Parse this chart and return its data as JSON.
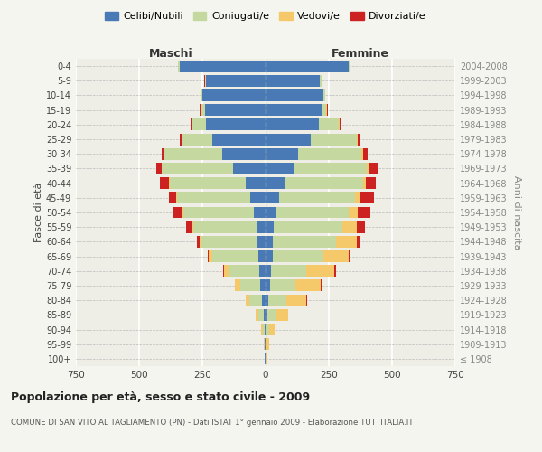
{
  "age_groups": [
    "100+",
    "95-99",
    "90-94",
    "85-89",
    "80-84",
    "75-79",
    "70-74",
    "65-69",
    "60-64",
    "55-59",
    "50-54",
    "45-49",
    "40-44",
    "35-39",
    "30-34",
    "25-29",
    "20-24",
    "15-19",
    "10-14",
    "5-9",
    "0-4"
  ],
  "birth_years": [
    "≤ 1908",
    "1909-1913",
    "1914-1918",
    "1919-1923",
    "1924-1928",
    "1929-1933",
    "1934-1938",
    "1939-1943",
    "1944-1948",
    "1949-1953",
    "1954-1958",
    "1959-1963",
    "1964-1968",
    "1969-1973",
    "1974-1978",
    "1979-1983",
    "1984-1988",
    "1989-1993",
    "1994-1998",
    "1999-2003",
    "2004-2008"
  ],
  "maschi": {
    "celibi": [
      2,
      2,
      4,
      8,
      14,
      20,
      25,
      30,
      32,
      35,
      45,
      60,
      80,
      130,
      170,
      210,
      235,
      240,
      250,
      235,
      340
    ],
    "coniugati": [
      2,
      3,
      8,
      20,
      50,
      80,
      120,
      180,
      220,
      250,
      280,
      290,
      300,
      280,
      230,
      120,
      55,
      15,
      5,
      5,
      5
    ],
    "vedovi": [
      1,
      2,
      5,
      10,
      15,
      20,
      20,
      15,
      10,
      8,
      5,
      3,
      2,
      2,
      2,
      3,
      2,
      2,
      1,
      1,
      1
    ],
    "divorziati": [
      0,
      0,
      0,
      0,
      1,
      2,
      3,
      5,
      10,
      20,
      35,
      30,
      35,
      20,
      10,
      5,
      3,
      2,
      1,
      1,
      0
    ]
  },
  "femmine": {
    "nubili": [
      2,
      2,
      4,
      8,
      12,
      18,
      22,
      28,
      30,
      32,
      40,
      55,
      75,
      110,
      130,
      180,
      210,
      220,
      230,
      215,
      330
    ],
    "coniugate": [
      2,
      3,
      10,
      30,
      70,
      100,
      140,
      200,
      250,
      270,
      290,
      300,
      310,
      290,
      250,
      180,
      80,
      20,
      5,
      5,
      5
    ],
    "vedove": [
      3,
      8,
      20,
      50,
      80,
      100,
      110,
      100,
      80,
      60,
      35,
      20,
      10,
      8,
      5,
      5,
      3,
      2,
      1,
      1,
      1
    ],
    "divorziate": [
      0,
      0,
      1,
      2,
      3,
      5,
      5,
      8,
      15,
      30,
      50,
      55,
      40,
      35,
      20,
      10,
      5,
      3,
      1,
      1,
      0
    ]
  },
  "colors": {
    "celibi_nubili": "#4a7ab5",
    "coniugati": "#c5d8a0",
    "vedovi": "#f5c96a",
    "divorziati": "#cc2222"
  },
  "xlim": 750,
  "title": "Popolazione per età, sesso e stato civile - 2009",
  "subtitle": "COMUNE DI SAN VITO AL TAGLIAMENTO (PN) - Dati ISTAT 1° gennaio 2009 - Elaborazione TUTTITALIA.IT",
  "ylabel_left": "Fasce di età",
  "ylabel_right": "Anni di nascita",
  "xlabel_maschi": "Maschi",
  "xlabel_femmine": "Femmine",
  "legend_labels": [
    "Celibi/Nubili",
    "Coniugati/e",
    "Vedovi/e",
    "Divorziati/e"
  ],
  "bg_color": "#f5f5f0",
  "plot_bg": "#eeeee6"
}
